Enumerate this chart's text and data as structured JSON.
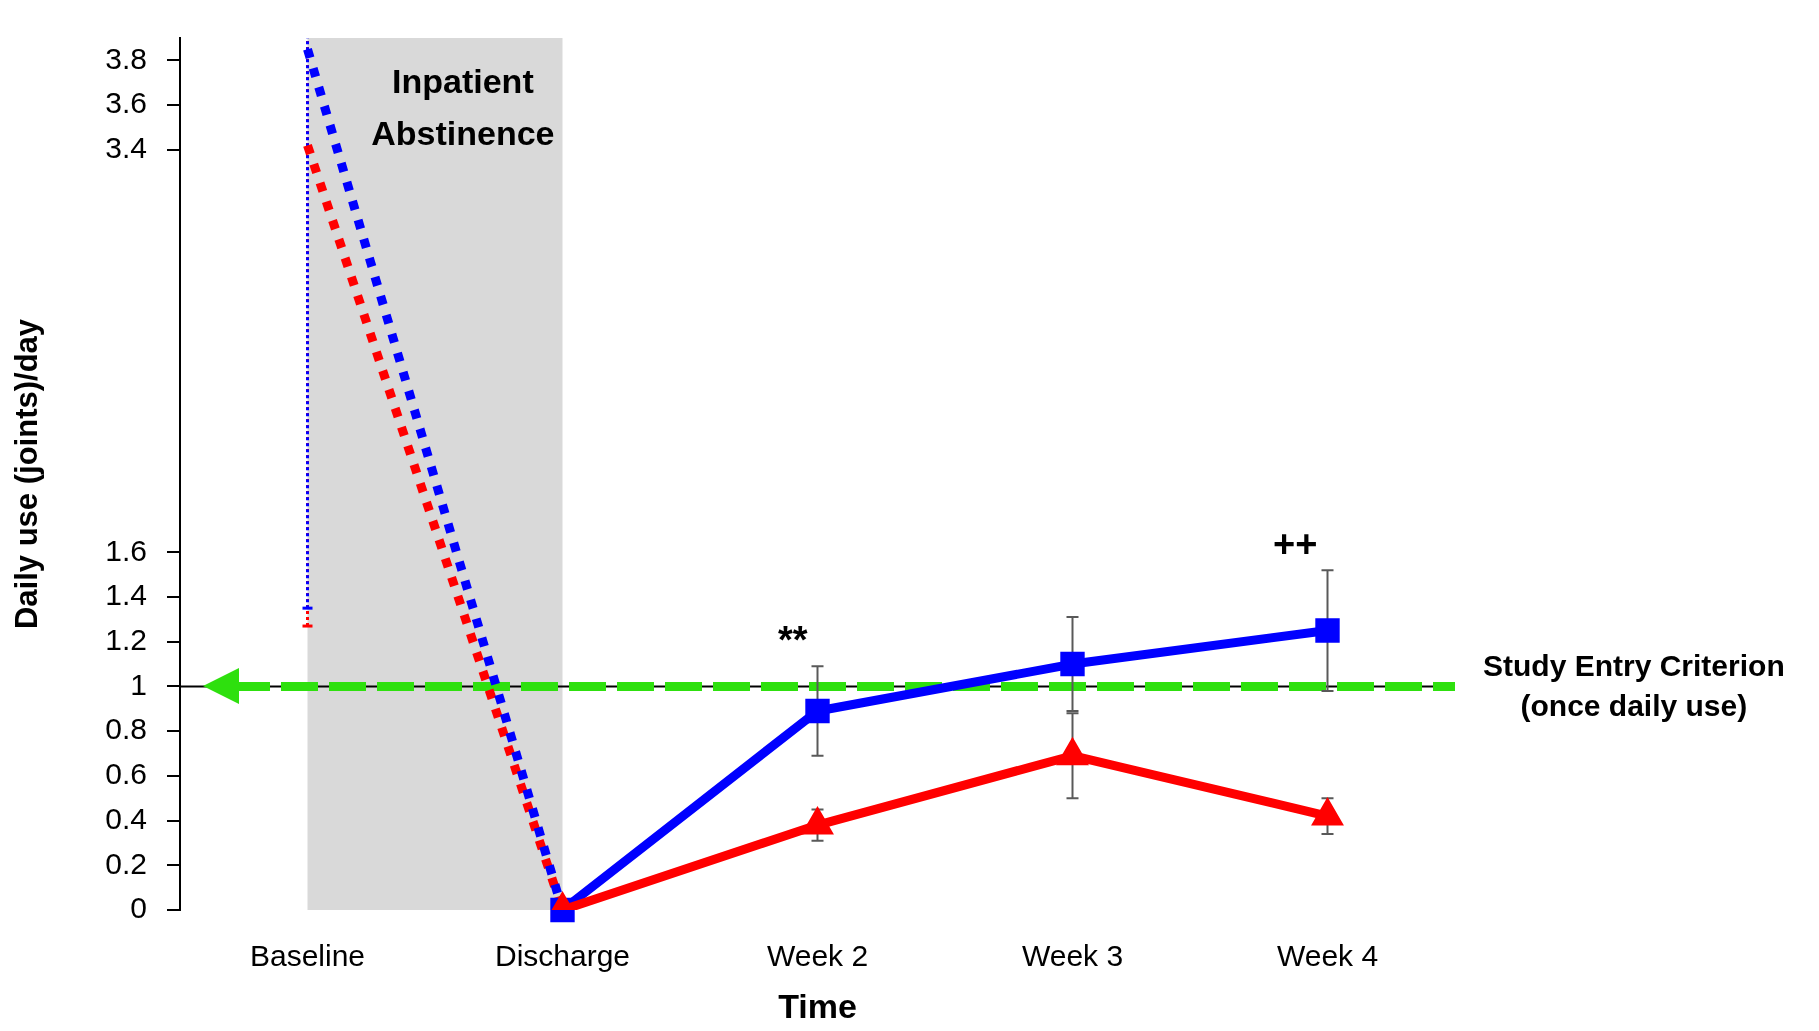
{
  "chart_data": {
    "type": "line",
    "categories": [
      "Baseline",
      "Discharge",
      "Week 2",
      "Week 3",
      "Week 4"
    ],
    "series": [
      {
        "color": "#ff0000",
        "values": [
          3.42,
          0,
          null,
          null,
          null
        ],
        "line_style": "dotted",
        "errors": [
          [
            1.27,
            3.9
          ],
          null,
          null,
          null,
          null
        ]
      },
      {
        "color": "#0000ff",
        "values": [
          3.85,
          0,
          null,
          null,
          null
        ],
        "line_style": "dotted",
        "errors": [
          [
            1.35,
            3.9
          ],
          null,
          null,
          null,
          null
        ]
      },
      {
        "color": "#0000ff",
        "values": [
          null,
          0,
          0.89,
          1.1,
          1.25
        ],
        "line_style": "solid",
        "marker": "square",
        "errors": [
          null,
          null,
          0.2,
          0.21,
          0.27
        ]
      },
      {
        "color": "#ff0000",
        "values": [
          null,
          0,
          0.38,
          0.69,
          0.42
        ],
        "line_style": "solid",
        "marker": "triangle",
        "errors": [
          null,
          null,
          0.07,
          0.19,
          0.08
        ]
      }
    ],
    "xlabel": "Time",
    "ylabel": "Daily use (joints)/day",
    "ylim": [
      0,
      3.9
    ],
    "yticks": [
      0,
      0.2,
      0.4,
      0.6,
      0.8,
      1,
      1.2,
      1.4,
      1.6,
      3.4,
      3.6,
      3.8
    ],
    "ref_lines": [
      {
        "axis": "y",
        "value": 1,
        "color": "#000000",
        "line_style": "solid"
      },
      {
        "axis": "y",
        "value": 1,
        "label": "Study Entry Criterion (once daily use)",
        "color": "#2ee00e",
        "line_style": "dashed"
      }
    ],
    "bands": [
      {
        "axis": "x",
        "from": "Baseline",
        "to": "Discharge",
        "label": "Inpatient Abstinence",
        "color": "#d9d9d9"
      }
    ],
    "annotations": [
      {
        "text": "**",
        "x": "Week 2",
        "y": 0.89
      },
      {
        "text": "++",
        "x": "Week 4",
        "y": 1.25
      }
    ]
  }
}
